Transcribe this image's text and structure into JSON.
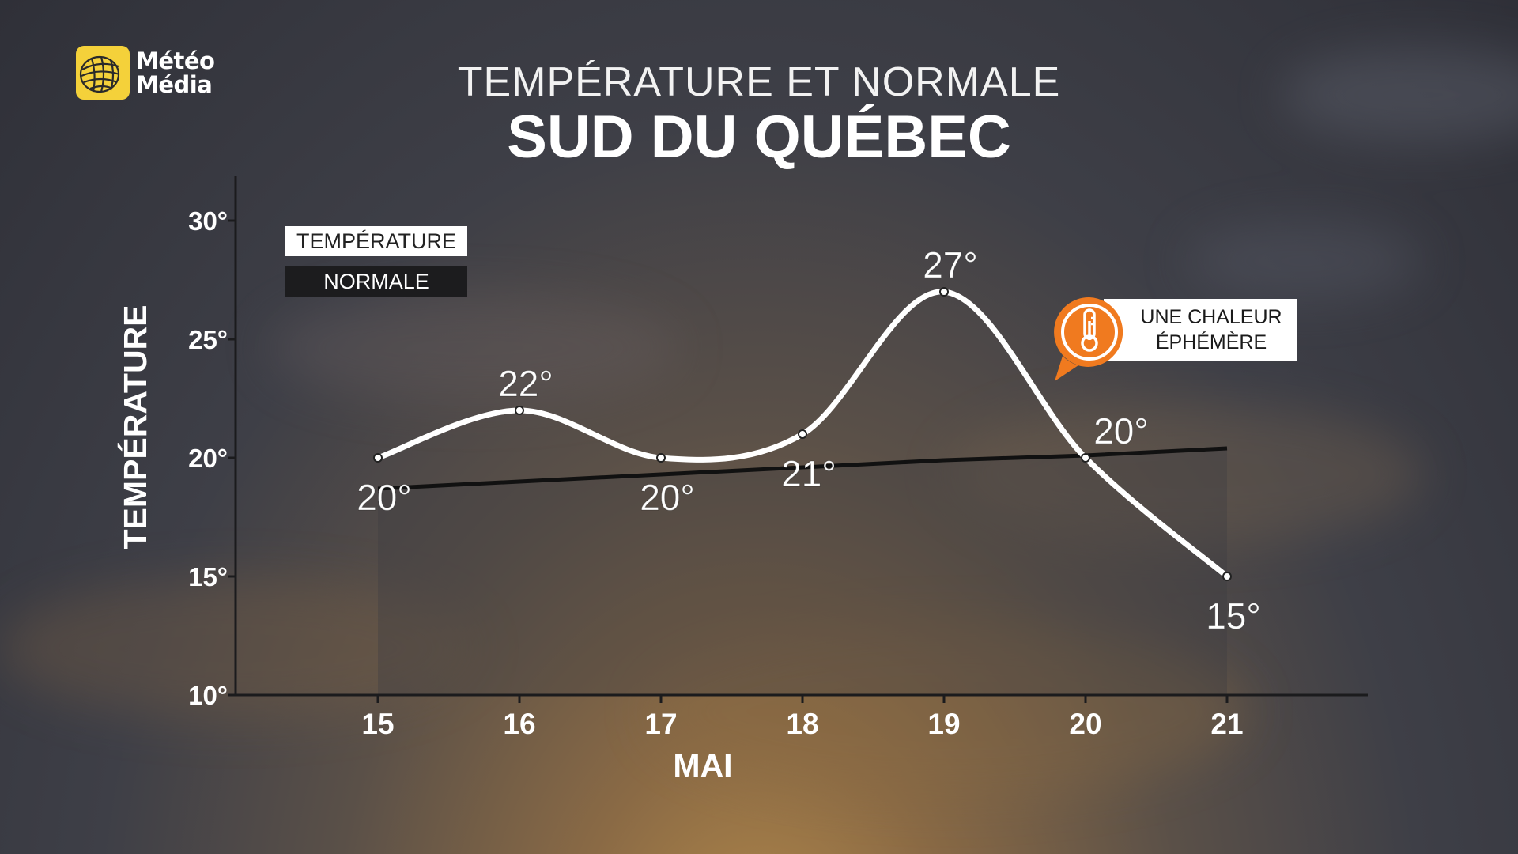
{
  "brand": {
    "line1": "Météo",
    "line2": "Média",
    "color": "#f4d13a"
  },
  "header": {
    "title_top": "TEMPÉRATURE ET NORMALE",
    "title_main": "SUD DU QUÉBEC"
  },
  "legend": {
    "temperature_label": "TEMPÉRATURE",
    "normal_label": "NORMALE"
  },
  "callout": {
    "line1": "UNE CHALEUR",
    "line2": "ÉPHÉMÈRE",
    "accent": "#f07a1f",
    "icon": "thermometer-icon"
  },
  "chart_data": {
    "type": "line",
    "title": "TEMPÉRATURE ET NORMALE",
    "subtitle": "SUD DU QUÉBEC",
    "xlabel": "MAI",
    "ylabel": "TEMPÉRATURE",
    "categories": [
      "15",
      "16",
      "17",
      "18",
      "19",
      "20",
      "21"
    ],
    "ylim": [
      10,
      30
    ],
    "yticks": [
      10,
      15,
      20,
      25,
      30
    ],
    "ytick_labels": [
      "10°",
      "15°",
      "20°",
      "25°",
      "30°"
    ],
    "series": [
      {
        "name": "TEMPÉRATURE",
        "values": [
          20,
          22,
          20,
          21,
          27,
          20,
          15
        ],
        "labels": [
          "20°",
          "22°",
          "20°",
          "21°",
          "27°",
          "20°",
          "15°"
        ],
        "color": "#ffffff"
      },
      {
        "name": "NORMALE",
        "values": [
          18.7,
          19.0,
          19.3,
          19.6,
          19.9,
          20.1,
          20.4
        ],
        "color": "#111111"
      }
    ],
    "grid": false,
    "legend_position": "top-left"
  }
}
